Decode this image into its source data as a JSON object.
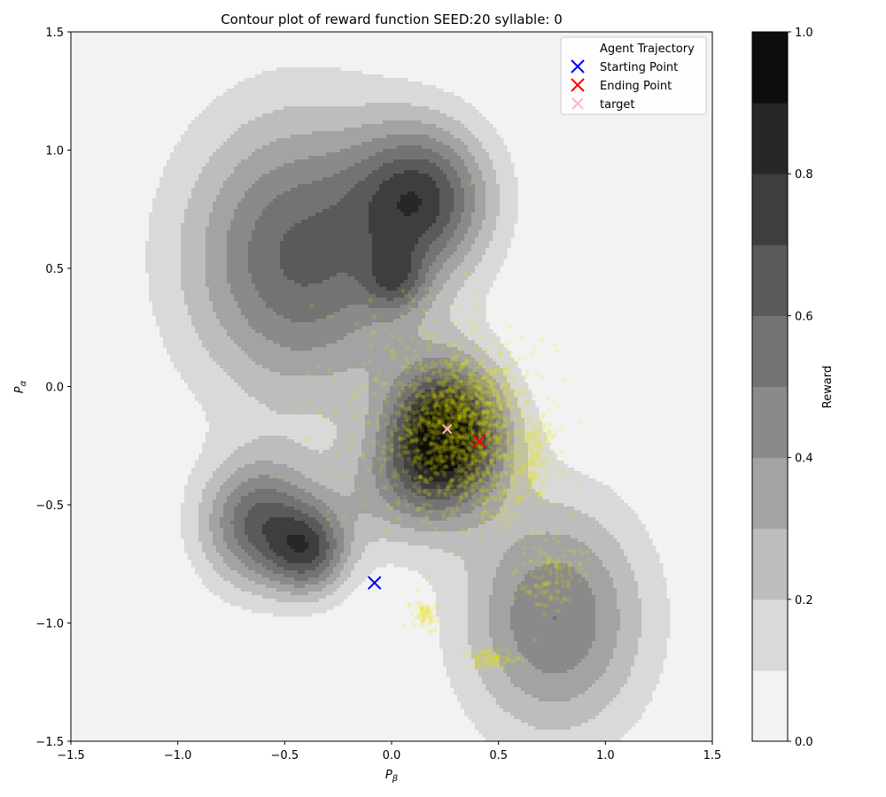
{
  "chart_data": {
    "type": "contour",
    "title": "Contour plot of reward function SEED:20 syllable: 0",
    "xlabel_main": "P",
    "xlabel_sub": "β",
    "ylabel_main": "P",
    "ylabel_sub": "α",
    "xlim": [
      -1.5,
      1.5
    ],
    "ylim": [
      -1.5,
      1.5
    ],
    "xticks": [
      -1.5,
      -1.0,
      -0.5,
      0.0,
      0.5,
      1.0,
      1.5
    ],
    "xtick_labels": [
      "−1.5",
      "−1.0",
      "−0.5",
      "0.0",
      "0.5",
      "1.0",
      "1.5"
    ],
    "yticks": [
      -1.5,
      -1.0,
      -0.5,
      0.0,
      0.5,
      1.0,
      1.5
    ],
    "ytick_labels": [
      "−1.5",
      "−1.0",
      "−0.5",
      "0.0",
      "0.5",
      "1.0",
      "1.5"
    ],
    "colorbar": {
      "label": "Reward",
      "range": [
        0.0,
        1.0
      ],
      "ticks": [
        0.0,
        0.2,
        0.4,
        0.6,
        0.8,
        1.0
      ],
      "tick_labels": [
        "0.0",
        "0.2",
        "0.4",
        "0.6",
        "0.8",
        "1.0"
      ],
      "colors": [
        "#f2f2f2",
        "#d9d9d9",
        "#bdbdbd",
        "#a3a3a3",
        "#8a8a8a",
        "#737373",
        "#5a5a5a",
        "#3e3e3e",
        "#272727",
        "#0d0d0d"
      ]
    },
    "reward_bumps": [
      {
        "cx": -0.42,
        "cy": 0.55,
        "sx": 0.38,
        "sy": 0.42,
        "amp": 0.62
      },
      {
        "cx": 0.15,
        "cy": 0.8,
        "sx": 0.22,
        "sy": 0.22,
        "amp": 0.62
      },
      {
        "cx": 0.26,
        "cy": -0.2,
        "sx": 0.19,
        "sy": 0.21,
        "amp": 1.0
      },
      {
        "cx": -0.62,
        "cy": -0.58,
        "sx": 0.19,
        "sy": 0.19,
        "amp": 0.6
      },
      {
        "cx": -0.38,
        "cy": -0.7,
        "sx": 0.13,
        "sy": 0.13,
        "amp": 0.52
      },
      {
        "cx": 0.76,
        "cy": -0.98,
        "sx": 0.3,
        "sy": 0.35,
        "amp": 0.5
      },
      {
        "cx": 0.02,
        "cy": 0.45,
        "sx": 0.1,
        "sy": 0.1,
        "amp": 0.3
      },
      {
        "cx": 0.0,
        "cy": -0.45,
        "sx": 0.22,
        "sy": 0.18,
        "amp": 0.25
      }
    ],
    "trajectory_clusters": [
      {
        "cx": 0.3,
        "cy": -0.18,
        "sx": 0.14,
        "sy": 0.16,
        "n": 900
      },
      {
        "cx": 0.45,
        "cy": -0.05,
        "sx": 0.1,
        "sy": 0.12,
        "n": 250
      },
      {
        "cx": 0.65,
        "cy": -0.3,
        "sx": 0.06,
        "sy": 0.1,
        "n": 220
      },
      {
        "cx": 0.15,
        "cy": -0.1,
        "sx": 0.25,
        "sy": 0.25,
        "n": 300
      },
      {
        "cx": 0.75,
        "cy": -0.8,
        "sx": 0.07,
        "sy": 0.08,
        "n": 120
      },
      {
        "cx": 0.45,
        "cy": -1.15,
        "sx": 0.07,
        "sy": 0.02,
        "n": 90
      },
      {
        "cx": 0.15,
        "cy": -0.96,
        "sx": 0.03,
        "sy": 0.03,
        "n": 70
      },
      {
        "cx": 0.5,
        "cy": -0.45,
        "sx": 0.08,
        "sy": 0.1,
        "n": 110
      }
    ],
    "starting_point": {
      "x": -0.08,
      "y": -0.83
    },
    "ending_point": {
      "x": 0.41,
      "y": -0.23
    },
    "target": {
      "x": 0.26,
      "y": -0.18
    },
    "legend": {
      "placement": "top-right",
      "entries": [
        "Agent Trajectory",
        "Starting Point",
        "Ending Point",
        "target"
      ]
    },
    "marker_colors": {
      "trajectory": "#e6e600",
      "start": "#0000ff",
      "end": "#ff0000",
      "target": "#ffb6c1"
    }
  }
}
